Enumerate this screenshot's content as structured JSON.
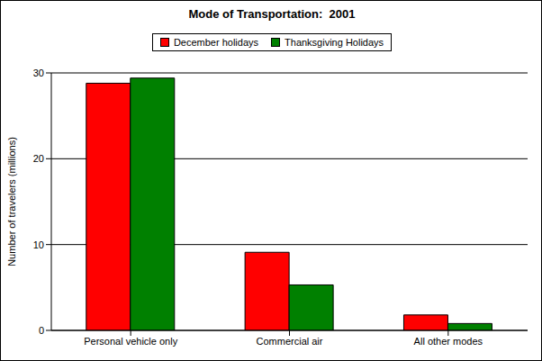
{
  "chart_data": {
    "type": "bar",
    "title": "Mode of Transportation:  2001",
    "y_label": "Number of travelers (millions)",
    "categories": [
      "Personal vehicle only",
      "Commercial air",
      "All other modes"
    ],
    "series": [
      {
        "name": "December holidays",
        "color": "#ff0000",
        "values": [
          28.8,
          9.1,
          1.8
        ]
      },
      {
        "name": "Thanksgiving Holidays",
        "color": "#008000",
        "values": [
          29.4,
          5.3,
          0.8
        ]
      }
    ],
    "ylim": [
      0,
      30
    ],
    "yticks": [
      0,
      10,
      20,
      30
    ],
    "grid": true,
    "legend": "top"
  }
}
